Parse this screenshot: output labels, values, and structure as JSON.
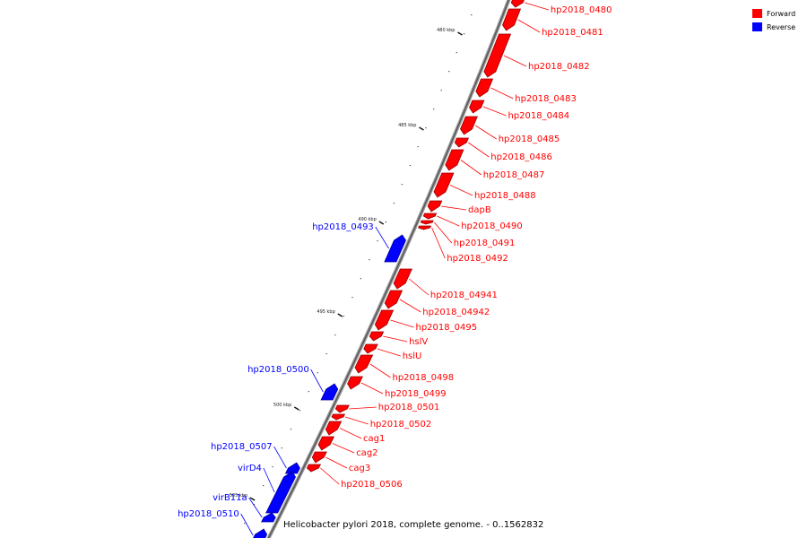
{
  "legend": [
    {
      "label": "Forward",
      "color": "#ff0000"
    },
    {
      "label": "Reverse",
      "color": "#0000ff"
    }
  ],
  "caption": "Helicobacter pylori 2018, complete genome. - 0..1562832",
  "ticks": [
    "480 kbp",
    "485 kbp",
    "490 kbp",
    "495 kbp",
    "500 kbp",
    "505 kbp"
  ],
  "genes": [
    {
      "name": "hp2018_0480",
      "strand": "forward"
    },
    {
      "name": "hp2018_0481",
      "strand": "forward"
    },
    {
      "name": "hp2018_0482",
      "strand": "forward"
    },
    {
      "name": "hp2018_0483",
      "strand": "forward"
    },
    {
      "name": "hp2018_0484",
      "strand": "forward"
    },
    {
      "name": "hp2018_0485",
      "strand": "forward"
    },
    {
      "name": "hp2018_0486",
      "strand": "forward"
    },
    {
      "name": "hp2018_0487",
      "strand": "forward"
    },
    {
      "name": "hp2018_0488",
      "strand": "forward"
    },
    {
      "name": "dapB",
      "strand": "forward"
    },
    {
      "name": "hp2018_0490",
      "strand": "forward"
    },
    {
      "name": "hp2018_0491",
      "strand": "forward"
    },
    {
      "name": "hp2018_0492",
      "strand": "forward"
    },
    {
      "name": "hp2018_0493",
      "strand": "reverse"
    },
    {
      "name": "hp2018_04941",
      "strand": "forward"
    },
    {
      "name": "hp2018_04942",
      "strand": "forward"
    },
    {
      "name": "hp2018_0495",
      "strand": "forward"
    },
    {
      "name": "hslV",
      "strand": "forward"
    },
    {
      "name": "hslU",
      "strand": "forward"
    },
    {
      "name": "hp2018_0498",
      "strand": "forward"
    },
    {
      "name": "hp2018_0499",
      "strand": "forward"
    },
    {
      "name": "hp2018_0500",
      "strand": "reverse"
    },
    {
      "name": "hp2018_0501",
      "strand": "forward"
    },
    {
      "name": "hp2018_0502",
      "strand": "forward"
    },
    {
      "name": "cag1",
      "strand": "forward"
    },
    {
      "name": "cag2",
      "strand": "forward"
    },
    {
      "name": "cag3",
      "strand": "forward"
    },
    {
      "name": "hp2018_0506",
      "strand": "forward"
    },
    {
      "name": "hp2018_0507",
      "strand": "reverse"
    },
    {
      "name": "virD4",
      "strand": "reverse"
    },
    {
      "name": "virB11a",
      "strand": "reverse"
    },
    {
      "name": "hp2018_0510",
      "strand": "reverse"
    }
  ]
}
